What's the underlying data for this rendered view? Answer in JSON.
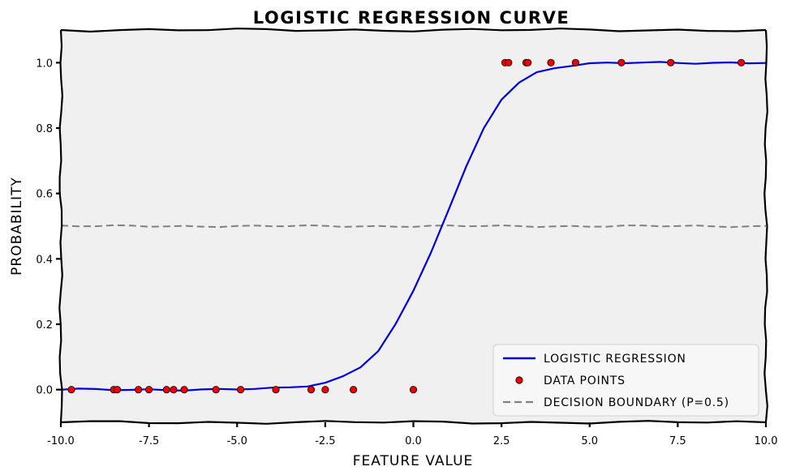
{
  "chart_data": {
    "type": "line",
    "title": "LOGISTIC REGRESSION CURVE",
    "xlabel": "FEATURE VALUE",
    "ylabel": "PROBABILITY",
    "xlim": [
      -10,
      10
    ],
    "ylim": [
      -0.1,
      1.1
    ],
    "x_ticks": [
      -10,
      -7.5,
      -5,
      -2.5,
      0,
      2.5,
      5,
      7.5,
      10
    ],
    "x_tick_labels": [
      "-10.0",
      "-7.5",
      "-5.0",
      "-2.5",
      "0.0",
      "2.5",
      "5.0",
      "7.5",
      "10.0"
    ],
    "y_ticks": [
      0,
      0.2,
      0.4,
      0.6,
      0.8,
      1.0
    ],
    "y_tick_labels": [
      "0.0",
      "0.2",
      "0.4",
      "0.6",
      "0.8",
      "1.0"
    ],
    "grid": false,
    "background_color": "#f0f0f0",
    "legend_position": "lower-right",
    "series": [
      {
        "name": "LOGISTIC REGRESSION",
        "type": "line",
        "color": "#0000dd",
        "x": [
          -10,
          -9.5,
          -9,
          -8.5,
          -8,
          -7.5,
          -7,
          -6.5,
          -6,
          -5.5,
          -5,
          -4.5,
          -4,
          -3.5,
          -3,
          -2.5,
          -2,
          -1.5,
          -1,
          -0.5,
          0,
          0.5,
          1,
          1.5,
          2,
          2.5,
          3,
          3.5,
          4,
          4.5,
          5,
          5.5,
          6,
          6.5,
          7,
          7.5,
          8,
          8.5,
          9,
          9.5,
          10
        ],
        "y": [
          0,
          0,
          0,
          0,
          0,
          0,
          0,
          0,
          0,
          0,
          0.001,
          0.002,
          0.003,
          0.006,
          0.012,
          0.022,
          0.04,
          0.07,
          0.12,
          0.2,
          0.3,
          0.42,
          0.55,
          0.68,
          0.8,
          0.89,
          0.94,
          0.97,
          0.985,
          0.992,
          0.996,
          0.998,
          0.999,
          1,
          1,
          1,
          1,
          1,
          1,
          1,
          1
        ]
      },
      {
        "name": "DATA POINTS",
        "type": "scatter",
        "color": "#ee0000",
        "x": [
          -9.7,
          -8.5,
          -8.4,
          -7.8,
          -7.5,
          -7.0,
          -6.8,
          -6.5,
          -5.6,
          -4.9,
          -3.9,
          -2.9,
          -2.5,
          -1.7,
          0.0,
          2.6,
          2.7,
          3.2,
          3.25,
          3.9,
          4.6,
          5.9,
          7.3,
          9.3
        ],
        "y": [
          0,
          0,
          0,
          0,
          0,
          0,
          0,
          0,
          0,
          0,
          0,
          0,
          0,
          0,
          0,
          1,
          1,
          1,
          1,
          1,
          1,
          1,
          1,
          1
        ]
      },
      {
        "name": "DECISION BOUNDARY (P=0.5)",
        "type": "hline",
        "color": "#808080",
        "y": 0.5
      }
    ]
  }
}
